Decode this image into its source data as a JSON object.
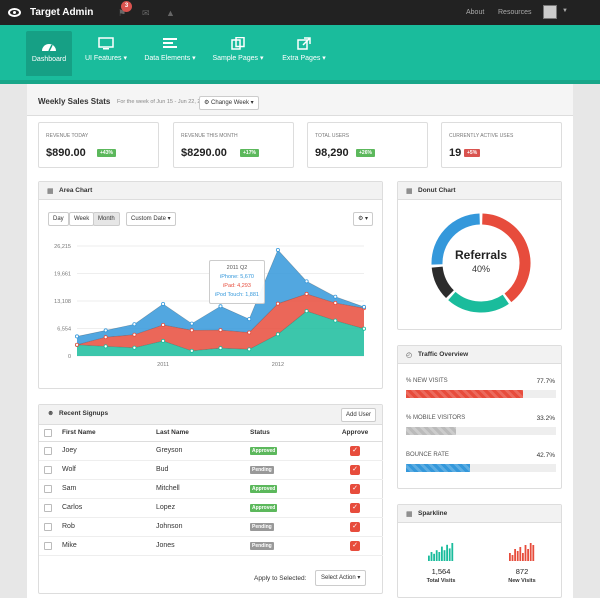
{
  "topbar": {
    "brand": "Target Admin",
    "notifications_count": "3",
    "links": [
      "About",
      "Resources"
    ]
  },
  "nav": {
    "items": [
      {
        "label": "Dashboard",
        "icon": "dashboard-icon"
      },
      {
        "label": "UI Features ▾",
        "icon": "monitor-icon"
      },
      {
        "label": "Data Elements ▾",
        "icon": "list-icon"
      },
      {
        "label": "Sample Pages ▾",
        "icon": "copy-icon"
      },
      {
        "label": "Extra Pages ▾",
        "icon": "external-link-icon"
      }
    ]
  },
  "weekly": {
    "title": "Weekly Sales Stats",
    "subtitle": "For the week of Jun 15 - Jun 22, 2011",
    "change_week": "Change Week ▾"
  },
  "stats": [
    {
      "label": "Revenue Today",
      "value": "$890.00",
      "badge": "+43%",
      "color": "#5cb85c"
    },
    {
      "label": "Revenue This Month",
      "value": "$8290.00",
      "badge": "+17%",
      "color": "#5cb85c"
    },
    {
      "label": "Total Users",
      "value": "98,290",
      "badge": "+26%",
      "color": "#5cb85c"
    },
    {
      "label": "Currently Active Uses",
      "value": "19",
      "badge": "+5%",
      "color": "#d9534f"
    }
  ],
  "area": {
    "title": "Area Chart",
    "range_buttons": [
      "Day",
      "Week",
      "Month"
    ],
    "custom_date": "Custom Date ▾",
    "settings": "⚙ ▾",
    "tooltip": {
      "title": "2011 Q2",
      "iphone": "iPhone: 5,670",
      "ipad": "iPad: 4,293",
      "itouch": "iPod Touch: 1,881"
    }
  },
  "chart_data": {
    "type": "area",
    "title": "Area Chart",
    "x": [
      2010.25,
      2010.5,
      2010.75,
      2011.0,
      2011.25,
      2011.5,
      2011.75,
      2012.0,
      2012.25,
      2012.5,
      2012.75
    ],
    "x_ticks": [
      "2011",
      "2012"
    ],
    "y_ticks": [
      "0",
      "6,554",
      "13,108",
      "19,661",
      "26,215"
    ],
    "ylim": [
      0,
      26215
    ],
    "series": [
      {
        "name": "iPod Touch",
        "color": "#1abc9c",
        "values": [
          2666,
          2294,
          1969,
          3597,
          1227,
          1881,
          1588,
          5175,
          10697,
          8432,
          6500
        ]
      },
      {
        "name": "iPad",
        "color": "#e74c3c",
        "values": [
          0,
          2200,
          3100,
          3800,
          4900,
          4293,
          4000,
          7300,
          4100,
          4200,
          4900
        ]
      },
      {
        "name": "iPhone",
        "color": "#3498db",
        "values": [
          2000,
          1600,
          2500,
          5000,
          1600,
          5670,
          3200,
          12800,
          3000,
          1500,
          300
        ]
      }
    ]
  },
  "donut": {
    "title": "Donut Chart",
    "label": "Referrals",
    "value": "40%"
  },
  "donut_data": {
    "type": "pie",
    "slices": [
      {
        "name": "Referrals",
        "value": 40,
        "color": "#e74c3c"
      },
      {
        "name": "",
        "value": 22,
        "color": "#1abc9c"
      },
      {
        "name": "",
        "value": 12,
        "color": "#2c2c2c"
      },
      {
        "name": "",
        "value": 26,
        "color": "#3498db"
      }
    ]
  },
  "traffic": {
    "title": "Traffic Overview",
    "rows": [
      {
        "label": "% New Visits",
        "value": "77.7%",
        "fraction": 0.777,
        "color": "#e74c3c"
      },
      {
        "label": "% Mobile Visitors",
        "value": "33.2%",
        "fraction": 0.332,
        "color": "#bbbbbb"
      },
      {
        "label": "Bounce Rate",
        "value": "42.7%",
        "fraction": 0.427,
        "color": "#3498db"
      }
    ]
  },
  "signups": {
    "title": "Recent Signups",
    "add_user": "Add User",
    "headers": [
      "First Name",
      "Last Name",
      "Status",
      "Approve"
    ],
    "rows": [
      {
        "first": "Joey",
        "last": "Greyson",
        "status": "Approved"
      },
      {
        "first": "Wolf",
        "last": "Bud",
        "status": "Pending"
      },
      {
        "first": "Sam",
        "last": "Mitchell",
        "status": "Approved"
      },
      {
        "first": "Carlos",
        "last": "Lopez",
        "status": "Approved"
      },
      {
        "first": "Rob",
        "last": "Johnson",
        "status": "Pending"
      },
      {
        "first": "Mike",
        "last": "Jones",
        "status": "Pending"
      }
    ],
    "apply_label": "Apply to Selected:",
    "select_action": "Select Action ▾"
  },
  "sparkline": {
    "title": "Sparkline",
    "items": [
      {
        "value": "1,564",
        "label": "Total Visits",
        "color": "#1abc9c",
        "bars": [
          3,
          5,
          4,
          6,
          5,
          8,
          6,
          9,
          7,
          10
        ]
      },
      {
        "value": "872",
        "label": "New Visits",
        "color": "#e74c3c",
        "bars": [
          4,
          3,
          6,
          5,
          7,
          4,
          8,
          6,
          9,
          8
        ]
      }
    ]
  }
}
